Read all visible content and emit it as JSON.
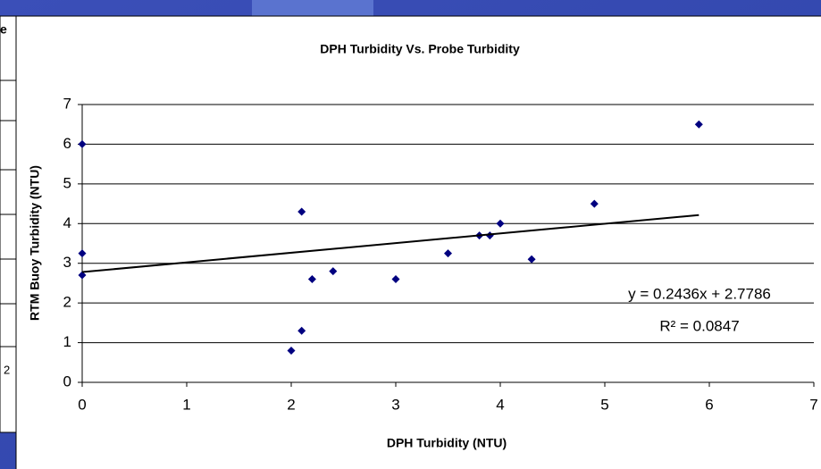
{
  "chart_data": {
    "type": "scatter",
    "title": "DPH Turbidity Vs. Probe Turbidity",
    "x_label": "DPH Turbidity (NTU)",
    "y_label": "RTM Buoy Turbidity (NTU)",
    "series": [
      {
        "color": "#000080",
        "x": [
          0,
          0,
          0,
          2,
          2.1,
          2.1,
          2.2,
          2.4,
          3,
          3.5,
          3.8,
          3.9,
          4,
          4.3,
          4.9,
          5.9
        ],
        "values": [
          6.0,
          3.25,
          2.7,
          0.8,
          1.3,
          4.3,
          2.6,
          2.8,
          2.6,
          3.25,
          3.7,
          3.7,
          4.0,
          3.1,
          4.5,
          6.5
        ]
      }
    ],
    "trendline": {
      "slope": 0.2436,
      "intercept": 2.7786,
      "color": "#000000",
      "equation": "y = 0.2436x + 2.7786",
      "r_squared": "R² = 0.0847"
    },
    "xlim": [
      0,
      7
    ],
    "xticks": [
      0,
      1,
      2,
      3,
      4,
      5,
      6,
      7
    ],
    "ylim": [
      0,
      7
    ],
    "yticks": [
      0,
      1,
      2,
      3,
      4,
      5,
      6,
      7
    ],
    "grid": true
  },
  "occluded_chart": {
    "title_fragment": "e",
    "tick_fragment": "2"
  }
}
